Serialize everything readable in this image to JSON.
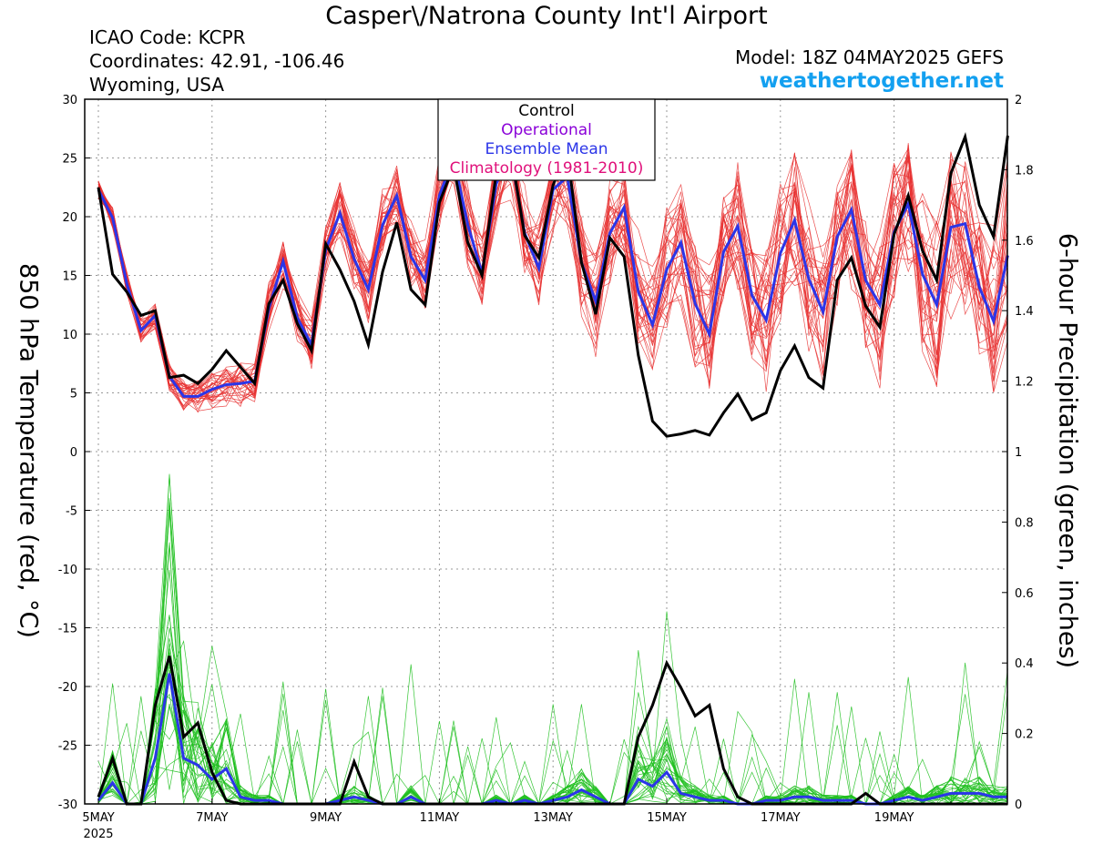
{
  "header": {
    "title": "Casper\\/Natrona County Int'l Airport",
    "icao": "ICAO Code: KCPR",
    "coords": "Coordinates: 42.91, -106.46",
    "region": "Wyoming, USA",
    "model": "Model: 18Z 04MAY2025 GEFS",
    "site": "weathertogether.net"
  },
  "colors": {
    "temp_members": "#e83030",
    "precip_members": "#20c020",
    "control": "#000000",
    "operational": "#8a00d8",
    "mean": "#2b35e8",
    "climatology": "#e0107a",
    "site": "#13a0f0"
  },
  "chart_data": {
    "type": "line",
    "ylabel": "850 hPa Temperature (red, °C)",
    "y2label": "6-hour Precipitation (green, inches)",
    "ylim": [
      -30,
      30
    ],
    "y2lim": [
      0,
      2
    ],
    "yticks": [
      "30",
      "25",
      "20",
      "15",
      "10",
      "5",
      "0",
      "-5",
      "-10",
      "-15",
      "-20",
      "-25",
      "-30"
    ],
    "y2ticks": [
      "2",
      "1.8",
      "1.6",
      "1.4",
      "1.2",
      "1",
      "0.8",
      "0.6",
      "0.4",
      "0.2",
      "0"
    ],
    "xlim": [
      0,
      63
    ],
    "x_step_hours": 6,
    "x_start": "5MAY 2025 00Z",
    "xticks": [
      {
        "x": 0,
        "label": "5MAY",
        "sub": "2025"
      },
      {
        "x": 8,
        "label": "7MAY",
        "sub": ""
      },
      {
        "x": 16,
        "label": "9MAY",
        "sub": ""
      },
      {
        "x": 24,
        "label": "11MAY",
        "sub": ""
      },
      {
        "x": 32,
        "label": "13MAY",
        "sub": ""
      },
      {
        "x": 40,
        "label": "15MAY",
        "sub": ""
      },
      {
        "x": 48,
        "label": "17MAY",
        "sub": ""
      },
      {
        "x": 56,
        "label": "19MAY",
        "sub": ""
      }
    ],
    "grid": true,
    "legend": {
      "position": "top-center",
      "entries": [
        "Control",
        "Operational",
        "Ensemble Mean",
        "Climatology (1981-2010)"
      ]
    },
    "control_temp": [
      22.5,
      15.1,
      13.6,
      11.6,
      12.0,
      6.3,
      6.5,
      5.8,
      7.0,
      8.6,
      7.2,
      5.8,
      12.6,
      14.6,
      10.9,
      8.6,
      17.7,
      15.5,
      12.8,
      9.1,
      15.3,
      19.5,
      13.8,
      12.5,
      21.2,
      24.3,
      17.8,
      15.0,
      23.7,
      25.8,
      18.4,
      16.5,
      22.7,
      25.5,
      16.1,
      11.7,
      18.2,
      16.6,
      8.2,
      2.6,
      1.3,
      1.5,
      1.8,
      1.4,
      3.3,
      4.9,
      2.7,
      3.3,
      6.9,
      9.0,
      6.3,
      5.4,
      14.6,
      16.5,
      12.4,
      10.6,
      18.5,
      21.8,
      17.1,
      14.6,
      23.7,
      26.8,
      21.0,
      18.3,
      26.9
    ],
    "mean_temp": [
      22.3,
      19.9,
      14.3,
      10.3,
      11.6,
      6.4,
      4.7,
      4.7,
      5.3,
      5.7,
      5.8,
      6.0,
      12.2,
      16.2,
      11.4,
      9.1,
      17.2,
      20.3,
      16.4,
      13.8,
      19.3,
      21.8,
      16.6,
      14.6,
      21.8,
      25.0,
      19.3,
      15.2,
      22.8,
      25.5,
      18.6,
      15.6,
      22.3,
      23.4,
      16.1,
      12.8,
      18.6,
      20.8,
      13.6,
      10.8,
      15.5,
      17.8,
      12.6,
      10.0,
      17.0,
      19.2,
      13.3,
      11.2,
      16.9,
      19.7,
      14.7,
      11.9,
      18.3,
      20.6,
      14.6,
      12.5,
      18.7,
      21.1,
      15.1,
      12.5,
      19.1,
      19.4,
      14.0,
      11.1,
      16.7
    ],
    "control_precip": [
      0.02,
      0.13,
      0,
      0,
      0.28,
      0.42,
      0.19,
      0.23,
      0.09,
      0.01,
      0,
      0,
      0,
      0,
      0,
      0,
      0,
      0,
      0.12,
      0.02,
      0,
      0,
      0,
      0,
      0,
      0,
      0,
      0,
      0,
      0,
      0,
      0,
      0,
      0,
      0,
      0,
      0,
      0,
      0.19,
      0.28,
      0.4,
      0.33,
      0.25,
      0.28,
      0.1,
      0.02,
      0,
      0,
      0,
      0,
      0,
      0,
      0,
      0,
      0.03,
      0,
      0,
      0,
      0,
      0,
      0,
      0,
      0,
      0,
      0
    ],
    "mean_precip": [
      0.01,
      0.06,
      0,
      0,
      0.13,
      0.37,
      0.13,
      0.11,
      0.07,
      0.1,
      0.02,
      0.01,
      0.01,
      0,
      0,
      0,
      0,
      0.01,
      0.02,
      0.01,
      0,
      0,
      0.02,
      0,
      0,
      0,
      0,
      0,
      0.01,
      0,
      0.01,
      0,
      0.01,
      0.02,
      0.04,
      0.02,
      0,
      0,
      0.07,
      0.05,
      0.09,
      0.03,
      0.02,
      0.01,
      0.01,
      0,
      0,
      0.01,
      0.01,
      0.02,
      0.02,
      0.01,
      0.01,
      0.01,
      0,
      0,
      0.01,
      0.02,
      0.01,
      0.02,
      0.03,
      0.03,
      0.03,
      0.02,
      0.02
    ],
    "members_note": "31 GEFS members (thin red temperature, thin green precipitation)"
  }
}
